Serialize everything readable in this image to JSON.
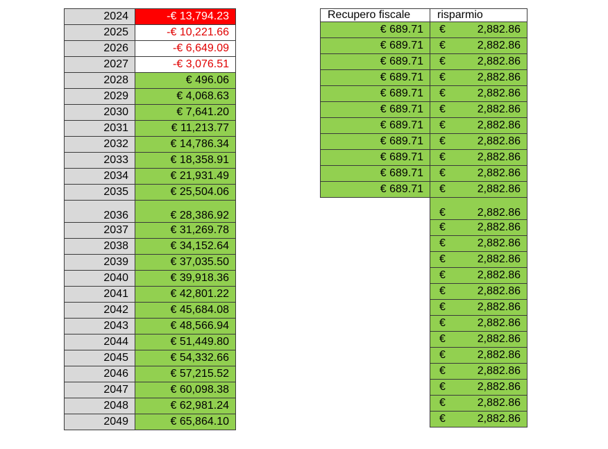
{
  "left_table": {
    "rows": [
      {
        "year": "2024",
        "value": "-€ 13,794.23",
        "tone": "neg-red"
      },
      {
        "year": "2025",
        "value": "-€ 10,221.66",
        "tone": "neg"
      },
      {
        "year": "2026",
        "value": "-€ 6,649.09",
        "tone": "neg"
      },
      {
        "year": "2027",
        "value": "-€ 3,076.51",
        "tone": "neg"
      },
      {
        "year": "2028",
        "value": "€ 496.06",
        "tone": "pos"
      },
      {
        "year": "2029",
        "value": "€ 4,068.63",
        "tone": "pos"
      },
      {
        "year": "2030",
        "value": "€ 7,641.20",
        "tone": "pos"
      },
      {
        "year": "2031",
        "value": "€ 11,213.77",
        "tone": "pos"
      },
      {
        "year": "2032",
        "value": "€ 14,786.34",
        "tone": "pos"
      },
      {
        "year": "2033",
        "value": "€ 18,358.91",
        "tone": "pos"
      },
      {
        "year": "2034",
        "value": "€ 21,931.49",
        "tone": "pos"
      },
      {
        "year": "2035",
        "value": "€ 25,504.06",
        "tone": "pos"
      },
      {
        "year": "2036",
        "value": "€ 28,386.92",
        "tone": "pos"
      },
      {
        "year": "2037",
        "value": "€ 31,269.78",
        "tone": "pos"
      },
      {
        "year": "2038",
        "value": "€ 34,152.64",
        "tone": "pos"
      },
      {
        "year": "2039",
        "value": "€ 37,035.50",
        "tone": "pos"
      },
      {
        "year": "2040",
        "value": "€ 39,918.36",
        "tone": "pos"
      },
      {
        "year": "2041",
        "value": "€ 42,801.22",
        "tone": "pos"
      },
      {
        "year": "2042",
        "value": "€ 45,684.08",
        "tone": "pos"
      },
      {
        "year": "2043",
        "value": "€ 48,566.94",
        "tone": "pos"
      },
      {
        "year": "2044",
        "value": "€ 51,449.80",
        "tone": "pos"
      },
      {
        "year": "2045",
        "value": "€ 54,332.66",
        "tone": "pos"
      },
      {
        "year": "2046",
        "value": "€ 57,215.52",
        "tone": "pos"
      },
      {
        "year": "2047",
        "value": "€ 60,098.38",
        "tone": "pos"
      },
      {
        "year": "2048",
        "value": "€ 62,981.24",
        "tone": "pos"
      },
      {
        "year": "2049",
        "value": "€ 65,864.10",
        "tone": "pos"
      }
    ]
  },
  "right_table": {
    "headers": {
      "recupero": "Recupero fiscale",
      "risparmio": "risparmio"
    },
    "currency_symbol": "€",
    "rows": [
      {
        "recupero": "€ 689.71",
        "risparmio": "2,882.86"
      },
      {
        "recupero": "€ 689.71",
        "risparmio": "2,882.86"
      },
      {
        "recupero": "€ 689.71",
        "risparmio": "2,882.86"
      },
      {
        "recupero": "€ 689.71",
        "risparmio": "2,882.86"
      },
      {
        "recupero": "€ 689.71",
        "risparmio": "2,882.86"
      },
      {
        "recupero": "€ 689.71",
        "risparmio": "2,882.86"
      },
      {
        "recupero": "€ 689.71",
        "risparmio": "2,882.86"
      },
      {
        "recupero": "€ 689.71",
        "risparmio": "2,882.86"
      },
      {
        "recupero": "€ 689.71",
        "risparmio": "2,882.86"
      },
      {
        "recupero": "€ 689.71",
        "risparmio": "2,882.86"
      },
      {
        "recupero": "€ 689.71",
        "risparmio": "2,882.86"
      },
      {
        "recupero": "",
        "risparmio": "2,882.86"
      },
      {
        "recupero": "",
        "risparmio": "2,882.86"
      },
      {
        "recupero": "",
        "risparmio": "2,882.86"
      },
      {
        "recupero": "",
        "risparmio": "2,882.86"
      },
      {
        "recupero": "",
        "risparmio": "2,882.86"
      },
      {
        "recupero": "",
        "risparmio": "2,882.86"
      },
      {
        "recupero": "",
        "risparmio": "2,882.86"
      },
      {
        "recupero": "",
        "risparmio": "2,882.86"
      },
      {
        "recupero": "",
        "risparmio": "2,882.86"
      },
      {
        "recupero": "",
        "risparmio": "2,882.86"
      },
      {
        "recupero": "",
        "risparmio": "2,882.86"
      },
      {
        "recupero": "",
        "risparmio": "2,882.86"
      },
      {
        "recupero": "",
        "risparmio": "2,882.86"
      },
      {
        "recupero": "",
        "risparmio": "2,882.86"
      }
    ]
  },
  "colors": {
    "positive_fill": "#92d050",
    "negative_text": "#e00000",
    "negative_fill": "#ff0000",
    "year_fill": "#d9d9d9"
  }
}
